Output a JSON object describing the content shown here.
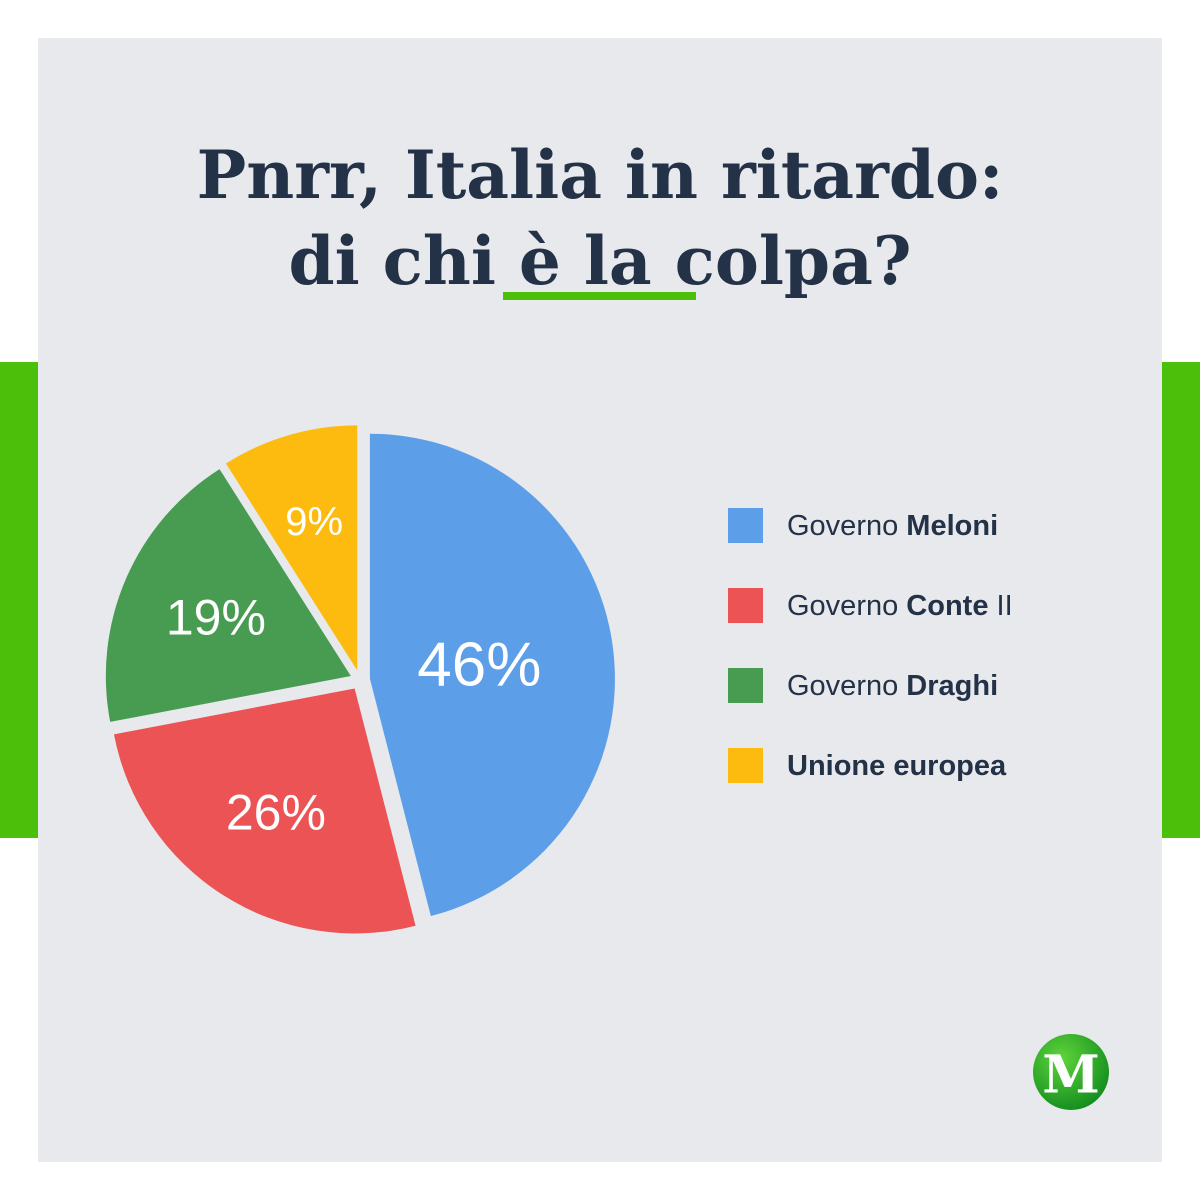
{
  "title": {
    "line1": "Pnrr, Italia in ritardo:",
    "line2": "di chi è la colpa?"
  },
  "colors": {
    "background": "#e8e9ed",
    "accent": "#4cbf0b",
    "text": "#243248",
    "meloni": "#5c9ee8",
    "conte": "#ec5355",
    "draghi": "#489c51",
    "ue": "#fcbb0e"
  },
  "legend": [
    {
      "prefix": "Governo ",
      "bold": "Meloni",
      "suffix": "",
      "color": "#5c9ee8"
    },
    {
      "prefix": "Governo ",
      "bold": "Conte",
      "suffix": " II",
      "color": "#ec5355"
    },
    {
      "prefix": "Governo ",
      "bold": "Draghi",
      "suffix": "",
      "color": "#489c51"
    },
    {
      "prefix": "",
      "bold": "Unione europea",
      "suffix": "",
      "color": "#fcbb0e"
    }
  ],
  "chart_data": {
    "type": "pie",
    "title": "Pnrr, Italia in ritardo: di chi è la colpa?",
    "categories": [
      "Governo Meloni",
      "Governo Conte II",
      "Governo Draghi",
      "Unione europea"
    ],
    "values": [
      46,
      26,
      19,
      9
    ],
    "labels": [
      "46%",
      "26%",
      "19%",
      "9%"
    ],
    "colors": [
      "#5c9ee8",
      "#ec5355",
      "#489c51",
      "#fcbb0e"
    ],
    "start": "12 o'clock",
    "direction": "clockwise",
    "exploded": true,
    "legend_placement": "right"
  },
  "logo": {
    "letter": "M",
    "icon": "m-logo-icon"
  }
}
